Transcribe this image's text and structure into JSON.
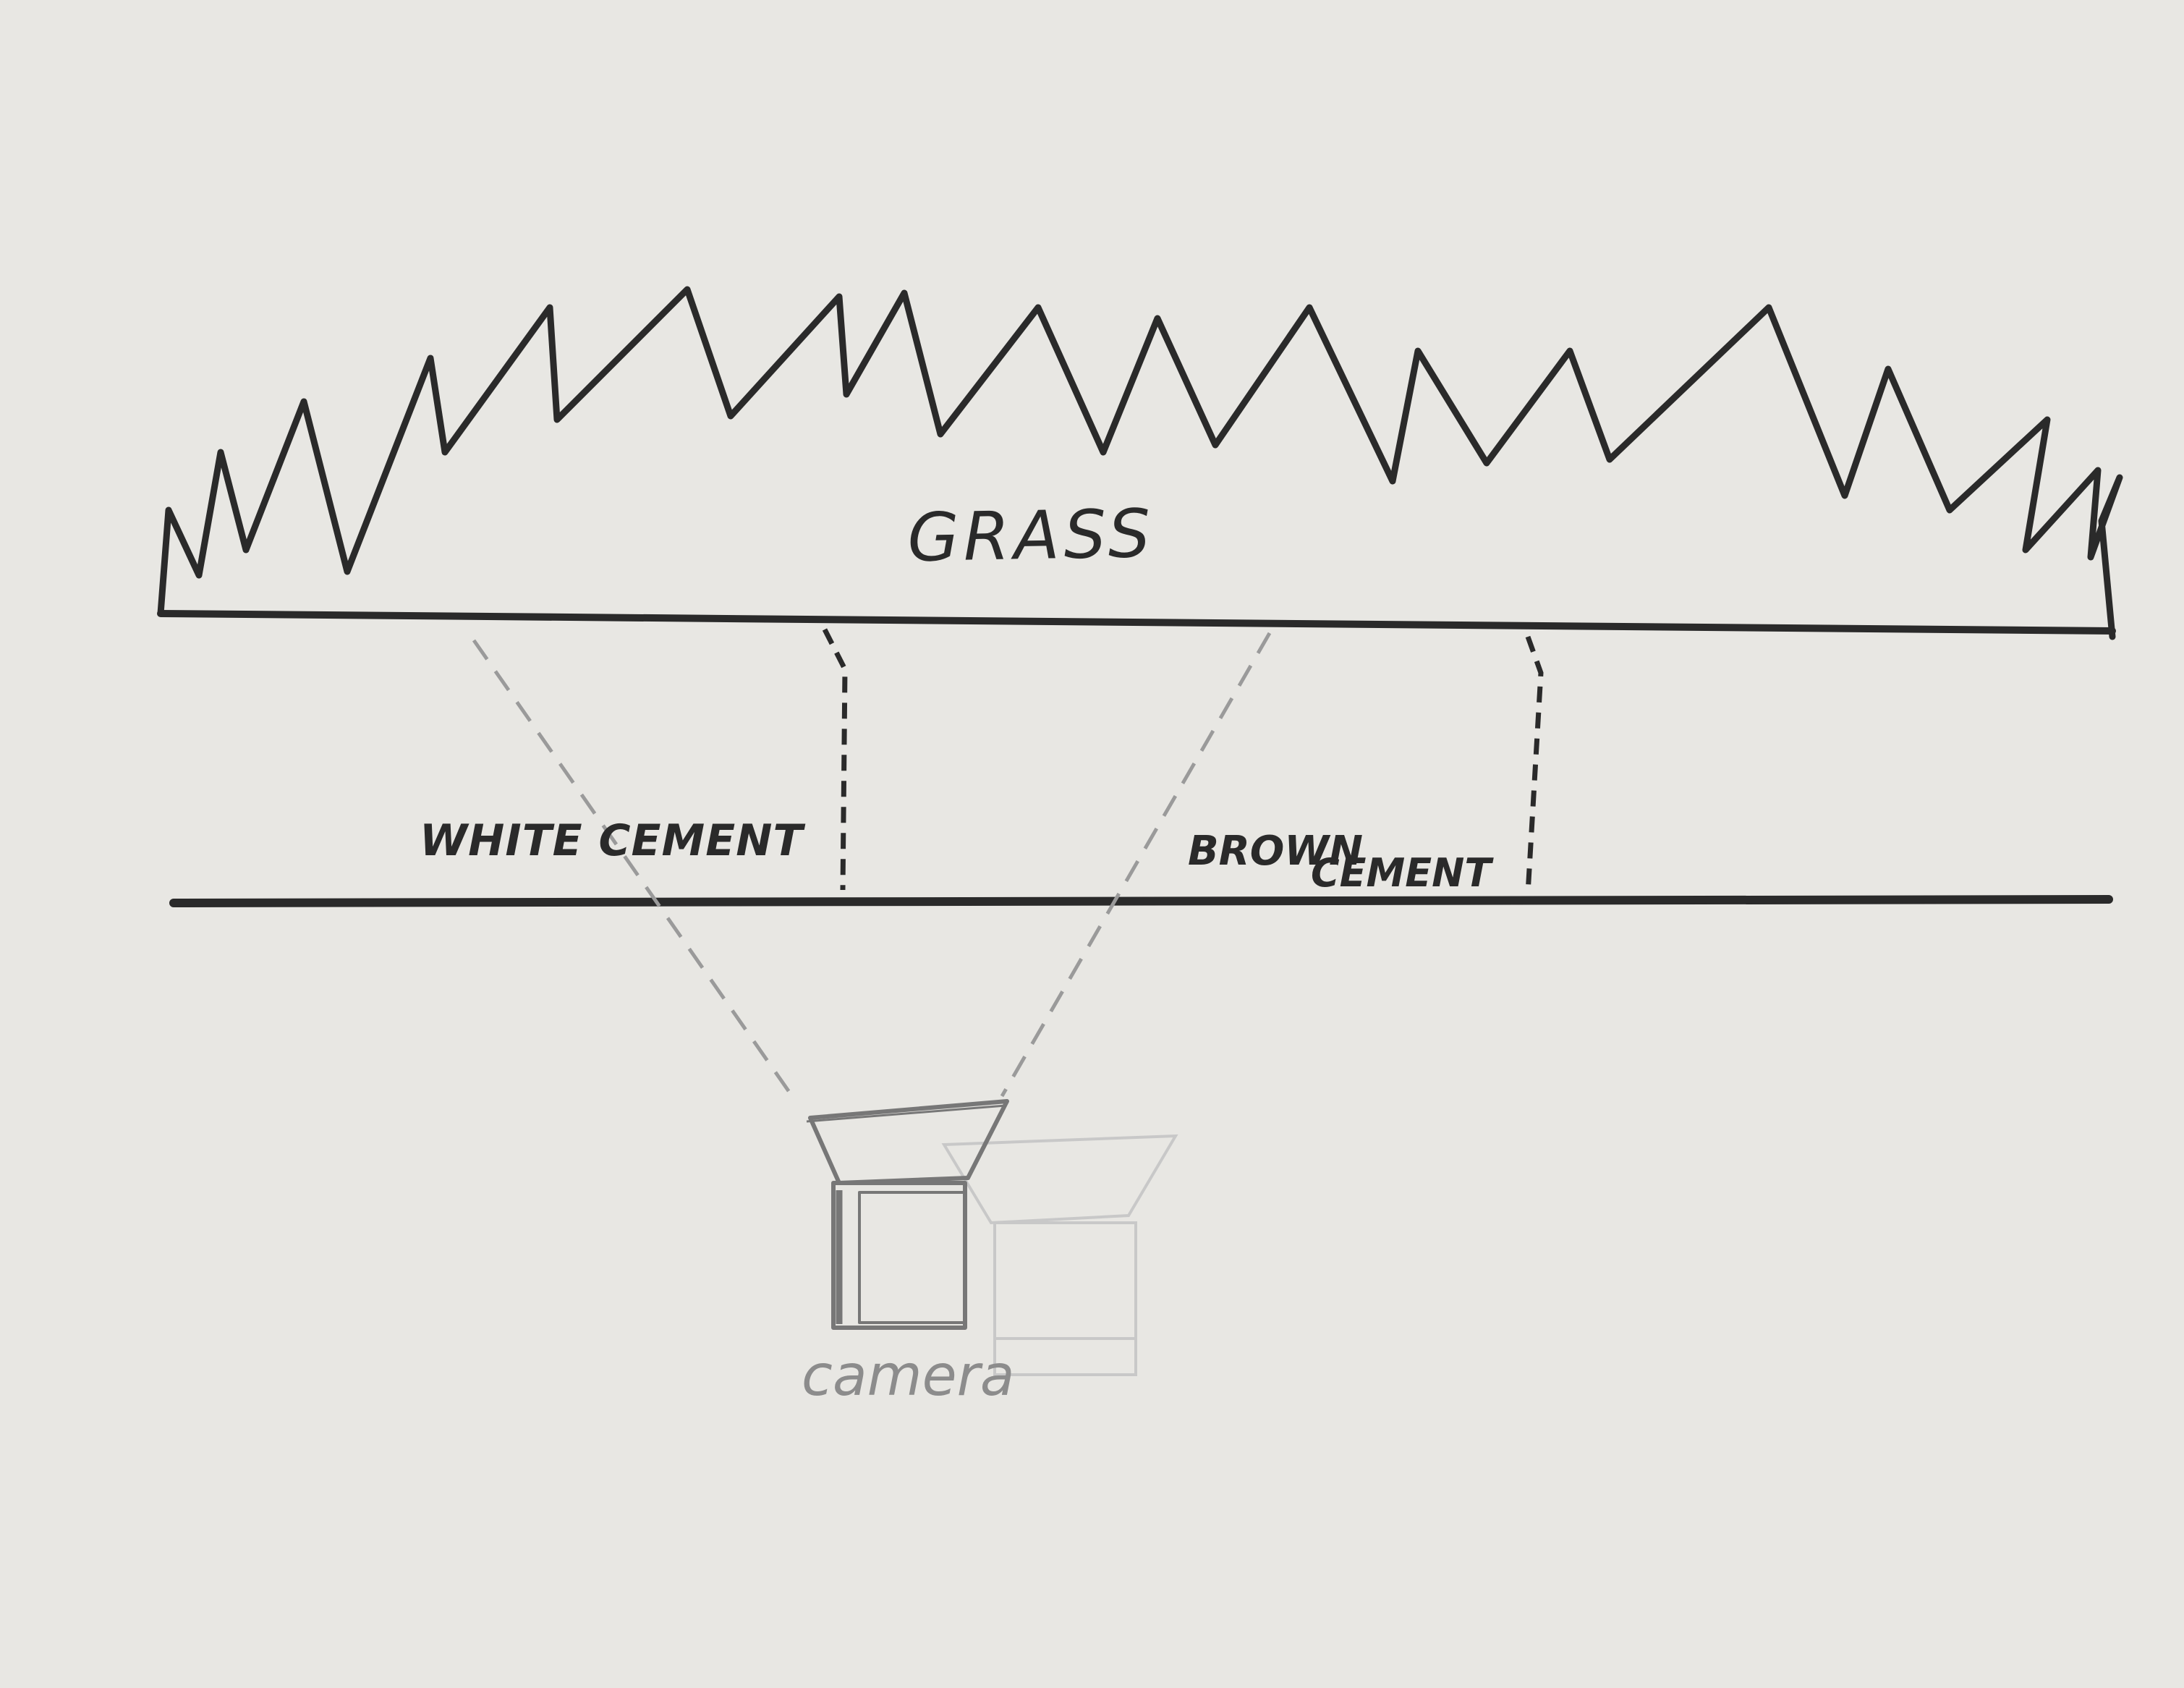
{
  "diagram": {
    "labels": {
      "grass": "GRASS",
      "white_cement": "WHITE CEMENT",
      "brown_cement_line1": "BROWN",
      "brown_cement_line2": "CEMENT",
      "camera": "camera"
    },
    "colors": {
      "paper": "#e8e7e3",
      "ink": "#2a2a2a",
      "pencil": "#8c8c8c",
      "faint_pencil": "#c4c4c4"
    }
  }
}
